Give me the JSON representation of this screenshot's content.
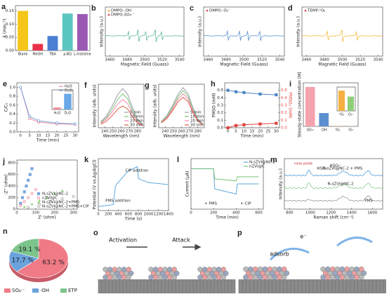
{
  "chart_data": [
    {
      "panel_label": "a",
      "type": "bar",
      "categories": [
        "Blank",
        "MeOH",
        "TBA",
        "p-BQ",
        "L-histidine"
      ],
      "values": [
        0.15,
        0.025,
        0.055,
        0.14,
        0.138
      ],
      "colors": [
        "#f5c518",
        "#e8334a",
        "#4a7fd4",
        "#5cc6c0",
        "#9b59b6"
      ],
      "ylim": [
        0,
        0.17
      ],
      "yticks": [
        {
          "value": 0,
          "label": "0.00"
        },
        {
          "value": 0.05,
          "label": "0.05"
        },
        {
          "value": 0.1,
          "label": "0.10"
        },
        {
          "value": 0.15,
          "label": "0.15"
        }
      ],
      "ylabel": "k (min⁻¹)"
    },
    {
      "panel_label": "b",
      "type": "spectrum",
      "xlim": [
        3455,
        3545
      ],
      "xticks": [
        3460,
        3480,
        3500,
        3520,
        3540
      ],
      "xlabel": "Magnetic Field (Guass)",
      "ylabel": "Intensity (a.u.)",
      "color": "#4fae8f",
      "legend_entries": [
        "DMPO-·OH",
        "DMPO-SO₄·⁻"
      ],
      "legend_colors": [
        "#f5a623",
        "#d0343b"
      ]
    },
    {
      "panel_label": "c",
      "type": "spectrum",
      "xlim": [
        3455,
        3545
      ],
      "xticks": [
        3460,
        3480,
        3500,
        3520,
        3540
      ],
      "xlabel": "Magnetic Field (Guass)",
      "ylabel": "Intensity (a.u.)",
      "color": "#4a86c8",
      "legend_entries": [
        "DMPO-·O₂⁻"
      ],
      "legend_colors": [
        "#d0343b"
      ]
    },
    {
      "panel_label": "d",
      "type": "spectrum",
      "xlim": [
        3455,
        3545
      ],
      "xticks": [
        3460,
        3480,
        3500,
        3520,
        3540
      ],
      "xlabel": "Magnetic Field (Guass)",
      "ylabel": "Intensity (a.u.)",
      "color": "#f0b429",
      "legend_entries": [
        "TEMP-¹O₂"
      ],
      "legend_colors": [
        "#d0343b"
      ]
    },
    {
      "panel_label": "e",
      "type": "line",
      "x": [
        0,
        5,
        10,
        20,
        30
      ],
      "series": [
        {
          "name": "H₂O",
          "color": "#f08a9b",
          "values": [
            1,
            0.3,
            0.22,
            0.18,
            0.17
          ]
        },
        {
          "name": "D₂O",
          "color": "#7aa7dd",
          "values": [
            1,
            0.35,
            0.25,
            0.2,
            0.18
          ]
        }
      ],
      "marker": "circle",
      "xlim": [
        -2,
        32
      ],
      "xticks": [
        0,
        5,
        10,
        15,
        20,
        25,
        30
      ],
      "ylim": [
        0,
        1.1
      ],
      "yticks": [
        {
          "value": 0,
          "label": "0.0"
        },
        {
          "value": 0.2,
          "label": "0.2"
        },
        {
          "value": 0.4,
          "label": "0.4"
        },
        {
          "value": 0.6,
          "label": "0.6"
        },
        {
          "value": 0.8,
          "label": "0.8"
        },
        {
          "value": 1,
          "label": "1.0"
        }
      ],
      "xlabel": "Time (min)",
      "ylabel": "C/C₀",
      "legend": "upper right"
    },
    {
      "panel_label": "f",
      "type": "line",
      "x": [
        235,
        242,
        249,
        256,
        262,
        268,
        274,
        280,
        286
      ],
      "series": [
        {
          "name": "5 min",
          "color": "#9aa0a6",
          "values": [
            0.14,
            0.27,
            0.5,
            0.77,
            0.9,
            0.77,
            0.45,
            0.2,
            0.09
          ]
        },
        {
          "name": "10 min",
          "color": "#7cc47c",
          "values": [
            0.12,
            0.23,
            0.43,
            0.66,
            0.78,
            0.66,
            0.39,
            0.17,
            0.08
          ]
        },
        {
          "name": "20 min",
          "color": "#f08ab0",
          "values": [
            0.1,
            0.2,
            0.36,
            0.55,
            0.65,
            0.55,
            0.33,
            0.14,
            0.07
          ]
        },
        {
          "name": "30 min",
          "color": "#e0604a",
          "values": [
            0.08,
            0.15,
            0.28,
            0.43,
            0.5,
            0.43,
            0.25,
            0.11,
            0.05
          ]
        }
      ],
      "xlim": [
        232,
        288
      ],
      "xticks": [
        240,
        250,
        260,
        270,
        280
      ],
      "ylim": [
        0,
        1
      ],
      "xlabel": "Wavelength (nm)",
      "ylabel": "Intensity (arb. units)",
      "legend": "lower right"
    },
    {
      "panel_label": "g",
      "type": "line",
      "x": [
        235,
        242,
        249,
        256,
        262,
        268,
        274,
        280,
        286
      ],
      "series": [
        {
          "name": "5 min",
          "color": "#9aa0a6",
          "values": [
            0.14,
            0.28,
            0.51,
            0.78,
            0.92,
            0.78,
            0.46,
            0.2,
            0.09
          ]
        },
        {
          "name": "10 min",
          "color": "#7cc47c",
          "values": [
            0.13,
            0.26,
            0.47,
            0.72,
            0.85,
            0.72,
            0.43,
            0.19,
            0.09
          ]
        },
        {
          "name": "20 min",
          "color": "#f08ab0",
          "values": [
            0.12,
            0.23,
            0.43,
            0.66,
            0.78,
            0.66,
            0.39,
            0.17,
            0.08
          ]
        },
        {
          "name": "30 min",
          "color": "#e0604a",
          "values": [
            0.11,
            0.21,
            0.39,
            0.6,
            0.7,
            0.6,
            0.35,
            0.15,
            0.07
          ]
        }
      ],
      "xlim": [
        232,
        288
      ],
      "xticks": [
        240,
        250,
        260,
        270,
        280
      ],
      "ylim": [
        0,
        1
      ],
      "xlabel": "Wavelength (nm)",
      "ylabel": "Intensity (arb. units)",
      "legend": "lower right"
    },
    {
      "panel_label": "h",
      "type": "line",
      "x": [
        0,
        5,
        10,
        20,
        30
      ],
      "series": [
        {
          "name": "PMSO",
          "color": "#4a86c8",
          "values": [
            0.5,
            0.48,
            0.47,
            0.45,
            0.44
          ]
        },
        {
          "name": "PMSO₂",
          "color": "#e0403a",
          "values": [
            0,
            0.03,
            0.04,
            0.05,
            0.06
          ],
          "axis": "y2"
        }
      ],
      "marker": "square",
      "xlim": [
        -2,
        32
      ],
      "xticks": [
        0,
        5,
        10,
        15,
        20,
        25,
        30
      ],
      "ylim": [
        0,
        0.6
      ],
      "yticks": [
        {
          "value": 0,
          "label": "0.0"
        },
        {
          "value": 0.1,
          "label": "0.1"
        },
        {
          "value": 0.2,
          "label": "0.2"
        },
        {
          "value": 0.3,
          "label": "0.3"
        },
        {
          "value": 0.4,
          "label": "0.4"
        },
        {
          "value": 0.5,
          "label": "0.5"
        }
      ],
      "y2lim": [
        0,
        0.6
      ],
      "y2ticks": [
        {
          "value": 0,
          "label": "0.0"
        },
        {
          "value": 0.1,
          "label": "0.1"
        },
        {
          "value": 0.2,
          "label": "0.2"
        },
        {
          "value": 0.3,
          "label": "0.3"
        },
        {
          "value": 0.4,
          "label": "0.4"
        },
        {
          "value": 0.5,
          "label": "0.5"
        }
      ],
      "xlabel": "Time (min)",
      "ylabel": "PMSO (mM)",
      "y2label": "PMSO₂ (mM)"
    },
    {
      "panel_label": "i",
      "type": "bar",
      "categories": [
        "·SO₄⁻",
        "·OH",
        "¹O₂",
        "·O₂⁻"
      ],
      "values": [
        9.5,
        3.2,
        0.05,
        0.05
      ],
      "colors": [
        "#f4a3ae",
        "#5b8fd0",
        "#f5b041",
        "#8fcf7a"
      ],
      "ylim": [
        0,
        10.5
      ],
      "ylabel": "Steady-state concentration (M)"
    },
    {
      "panel_label": "j",
      "type": "scatter",
      "series": [
        {
          "name": "N-sZVI@NC-2",
          "color": "#7aa7dd",
          "x": [
            20,
            30,
            40,
            50,
            60,
            70,
            80
          ],
          "values": [
            100,
            200,
            300,
            400,
            500,
            600,
            700
          ],
          "marker": "square"
        },
        {
          "name": "nZVI@C",
          "color": "#f08a9b",
          "x": [
            20,
            40,
            60,
            80,
            100
          ],
          "values": [
            60,
            130,
            200,
            270,
            340
          ],
          "marker": "circle"
        },
        {
          "name": "N-sZVI@NC-2+PMS",
          "color": "#8fcf7a",
          "x": [
            40,
            80,
            120,
            160,
            200,
            240
          ],
          "values": [
            40,
            90,
            150,
            200,
            260,
            320
          ],
          "marker": "triangle"
        },
        {
          "name": "N-sZVI@NC-2+PMS+CIP",
          "color": "#aaaaaa",
          "x": [
            60,
            120,
            180,
            240,
            300
          ],
          "values": [
            30,
            80,
            130,
            180,
            220
          ],
          "marker": "circle"
        }
      ],
      "xlim": [
        0,
        320
      ],
      "xticks": [
        0,
        100,
        200,
        300
      ],
      "ylim": [
        0,
        850
      ],
      "yticks": [
        0,
        200,
        400,
        600,
        800
      ],
      "xlabel": "Z' (ohm)",
      "ylabel": "-Z'' (ohm)",
      "legend": "lower right"
    },
    {
      "panel_label": "k",
      "type": "line",
      "x": [
        0,
        300,
        340,
        360,
        600,
        700,
        780,
        800,
        1000,
        1400
      ],
      "series": [
        {
          "color": "#5fa8dc",
          "values": [
            0,
            0.05,
            0.5,
            0.55,
            0.9,
            0.95,
            1,
            0.7,
            0.6,
            0.55
          ]
        }
      ],
      "xlim": [
        0,
        1400
      ],
      "xticks": [
        0,
        200,
        400,
        600,
        800,
        1000,
        1200,
        1400
      ],
      "ylim": [
        -0.1,
        1.2
      ],
      "xlabel": "Time (s)",
      "ylabel": "Potential (V vs.Ag/AgCl)",
      "annotations": [
        "CIP addition",
        "PMS addition"
      ]
    },
    {
      "panel_label": "l",
      "type": "line",
      "x": [
        0,
        200,
        210,
        400,
        410,
        600
      ],
      "series": [
        {
          "name": "N-sZVI@NC-2",
          "color": "#5fa8dc",
          "values": [
            0,
            0,
            -2,
            -2.5,
            -1.5,
            -1.5
          ]
        },
        {
          "name": "nZVI@C",
          "color": "#7cc47c",
          "values": [
            0,
            0,
            -1,
            -1.2,
            -0.8,
            -0.8
          ]
        }
      ],
      "xlim": [
        0,
        640
      ],
      "xticks": [
        0,
        200,
        400,
        600
      ],
      "ylim": [
        -4,
        1
      ],
      "xlabel": "Time (min)",
      "ylabel": "Current (μA)",
      "legend": "upper right",
      "annotations": [
        "+ PMS",
        "+ CIP"
      ]
    },
    {
      "panel_label": "m",
      "type": "raman",
      "xlim": [
        750,
        1700
      ],
      "xticks": [
        800,
        1000,
        1200,
        1400,
        1600
      ],
      "xlabel": "Raman shift (cm⁻¹)",
      "ylabel": "Intensity (a.u.)",
      "annotations": [
        "new peak",
        "HSO₅⁻",
        "HSO₅⁻",
        "N-sZVI@NC-2 + PMS",
        "N-sZVI@NC-2",
        "PMS"
      ]
    },
    {
      "panel_label": "n",
      "type": "pie",
      "categories": [
        "SO₄·⁻",
        "·OH",
        "ETP"
      ],
      "values": [
        63.2,
        17.7,
        19.1
      ],
      "value_labels": [
        "63.2 %",
        "17.7 %",
        "19.1 %"
      ],
      "colors": [
        "#f07a86",
        "#6aa2dc",
        "#7cc48c"
      ]
    },
    {
      "type": "bar",
      "categories": [
        "H₂O",
        "D₂O"
      ],
      "values": [
        0.1,
        0.8
      ],
      "colors": [
        "#f08a9b",
        "#6aa8e8"
      ],
      "ylim": [
        0,
        1
      ]
    },
    {
      "type": "bar",
      "categories": [
        "¹O₂",
        "·O₂⁻"
      ],
      "values": [
        8.5,
        6
      ],
      "colors": [
        "#f5b041",
        "#8fcf7a"
      ],
      "ylim": [
        0,
        10
      ]
    }
  ],
  "schemes": {
    "o": {
      "panel_label": "o",
      "texts": [
        "Activation",
        "Attack"
      ]
    },
    "p": {
      "panel_label": "p",
      "texts": [
        "adsorb",
        "e⁻"
      ]
    }
  }
}
